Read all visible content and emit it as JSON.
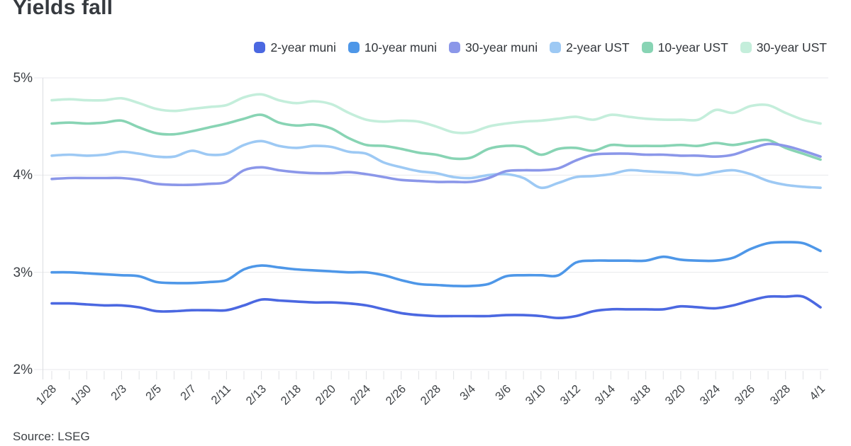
{
  "header": {
    "title": "Yields fall"
  },
  "legend": {
    "items": [
      {
        "label": "2-year muni",
        "color": "#4b68e1"
      },
      {
        "label": "10-year muni",
        "color": "#4e97e8"
      },
      {
        "label": "30-year muni",
        "color": "#8b97e9"
      },
      {
        "label": "2-year UST",
        "color": "#9dc9f4"
      },
      {
        "label": "10-year UST",
        "color": "#88d4b4"
      },
      {
        "label": "30-year UST",
        "color": "#c4eedb"
      }
    ]
  },
  "footer": {
    "source": "Source: LSEG"
  },
  "chart_data": {
    "type": "line",
    "title": "Yields fall",
    "xlabel": "",
    "ylabel": "",
    "ylim": [
      2,
      5
    ],
    "grid": true,
    "legend_position": "top-right",
    "y_ticks": [
      {
        "value": 5,
        "label": "5%"
      },
      {
        "value": 4,
        "label": "4%"
      },
      {
        "value": 3,
        "label": "3%"
      },
      {
        "value": 2,
        "label": "2%"
      }
    ],
    "x_tick_every": 2,
    "x": [
      "1/28",
      "1/29",
      "1/30",
      "1/31",
      "2/3",
      "2/4",
      "2/5",
      "2/6",
      "2/7",
      "2/10",
      "2/11",
      "2/12",
      "2/13",
      "2/14",
      "2/18",
      "2/19",
      "2/20",
      "2/21",
      "2/24",
      "2/25",
      "2/26",
      "2/27",
      "2/28",
      "3/3",
      "3/4",
      "3/5",
      "3/6",
      "3/7",
      "3/10",
      "3/11",
      "3/12",
      "3/13",
      "3/14",
      "3/17",
      "3/18",
      "3/19",
      "3/20",
      "3/21",
      "3/24",
      "3/25",
      "3/26",
      "3/27",
      "3/28",
      "3/31",
      "4/1"
    ],
    "series": [
      {
        "name": "30-year UST",
        "color": "#c4eedb",
        "values": [
          4.77,
          4.78,
          4.77,
          4.77,
          4.79,
          4.74,
          4.68,
          4.66,
          4.68,
          4.7,
          4.72,
          4.8,
          4.83,
          4.77,
          4.74,
          4.76,
          4.73,
          4.64,
          4.57,
          4.55,
          4.56,
          4.55,
          4.5,
          4.44,
          4.44,
          4.5,
          4.53,
          4.55,
          4.56,
          4.58,
          4.6,
          4.57,
          4.62,
          4.6,
          4.58,
          4.57,
          4.57,
          4.57,
          4.67,
          4.64,
          4.71,
          4.72,
          4.64,
          4.57,
          4.53
        ]
      },
      {
        "name": "10-year UST",
        "color": "#88d4b4",
        "values": [
          4.53,
          4.54,
          4.53,
          4.54,
          4.56,
          4.49,
          4.43,
          4.42,
          4.45,
          4.49,
          4.53,
          4.58,
          4.62,
          4.54,
          4.51,
          4.52,
          4.48,
          4.38,
          4.31,
          4.3,
          4.27,
          4.23,
          4.21,
          4.17,
          4.18,
          4.27,
          4.3,
          4.29,
          4.21,
          4.27,
          4.28,
          4.25,
          4.31,
          4.3,
          4.3,
          4.3,
          4.31,
          4.3,
          4.33,
          4.31,
          4.34,
          4.36,
          4.28,
          4.22,
          4.16
        ]
      },
      {
        "name": "2-year UST",
        "color": "#9dc9f4",
        "values": [
          4.2,
          4.21,
          4.2,
          4.21,
          4.24,
          4.22,
          4.19,
          4.19,
          4.25,
          4.21,
          4.22,
          4.31,
          4.35,
          4.3,
          4.28,
          4.3,
          4.29,
          4.24,
          4.22,
          4.13,
          4.08,
          4.04,
          4.02,
          3.98,
          3.97,
          4.0,
          4.01,
          3.97,
          3.87,
          3.92,
          3.98,
          3.99,
          4.01,
          4.05,
          4.04,
          4.03,
          4.02,
          4.0,
          4.03,
          4.05,
          4.01,
          3.94,
          3.9,
          3.88,
          3.87
        ]
      },
      {
        "name": "30-year muni",
        "color": "#8b97e9",
        "values": [
          3.96,
          3.97,
          3.97,
          3.97,
          3.97,
          3.95,
          3.91,
          3.9,
          3.9,
          3.91,
          3.93,
          4.05,
          4.08,
          4.05,
          4.03,
          4.02,
          4.02,
          4.03,
          4.01,
          3.98,
          3.95,
          3.94,
          3.93,
          3.93,
          3.93,
          3.97,
          4.04,
          4.05,
          4.05,
          4.07,
          4.15,
          4.21,
          4.22,
          4.22,
          4.21,
          4.21,
          4.2,
          4.2,
          4.19,
          4.21,
          4.27,
          4.32,
          4.3,
          4.25,
          4.19
        ]
      },
      {
        "name": "10-year muni",
        "color": "#4e97e8",
        "values": [
          3.0,
          3.0,
          2.99,
          2.98,
          2.97,
          2.96,
          2.9,
          2.89,
          2.89,
          2.9,
          2.92,
          3.03,
          3.07,
          3.05,
          3.03,
          3.02,
          3.01,
          3.0,
          3.0,
          2.97,
          2.92,
          2.88,
          2.87,
          2.86,
          2.86,
          2.88,
          2.96,
          2.97,
          2.97,
          2.97,
          3.1,
          3.12,
          3.12,
          3.12,
          3.12,
          3.16,
          3.13,
          3.12,
          3.12,
          3.15,
          3.24,
          3.3,
          3.31,
          3.3,
          3.22
        ]
      },
      {
        "name": "2-year muni",
        "color": "#4b68e1",
        "values": [
          2.68,
          2.68,
          2.67,
          2.66,
          2.66,
          2.64,
          2.6,
          2.6,
          2.61,
          2.61,
          2.61,
          2.66,
          2.72,
          2.71,
          2.7,
          2.69,
          2.69,
          2.68,
          2.66,
          2.62,
          2.58,
          2.56,
          2.55,
          2.55,
          2.55,
          2.55,
          2.56,
          2.56,
          2.55,
          2.53,
          2.55,
          2.6,
          2.62,
          2.62,
          2.62,
          2.62,
          2.65,
          2.64,
          2.63,
          2.66,
          2.71,
          2.75,
          2.75,
          2.75,
          2.64
        ]
      }
    ]
  }
}
